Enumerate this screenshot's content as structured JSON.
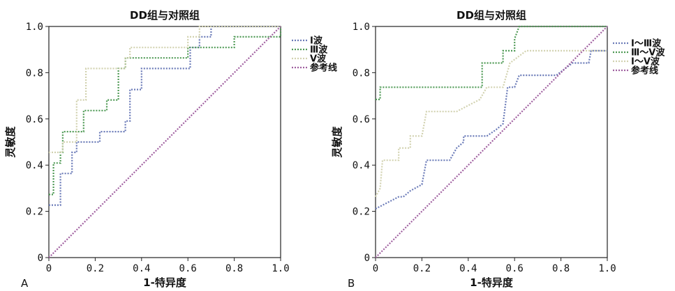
{
  "chart_data": [
    {
      "panel_label": "A",
      "type": "line",
      "title": "DD组与对照组",
      "xlabel": "1-特异度",
      "ylabel": "灵敏度",
      "xlim": [
        0,
        1
      ],
      "ylim": [
        0,
        1
      ],
      "x_ticks": [
        "0",
        "0.2",
        "0.4",
        "0.6",
        "0.8",
        "1.0"
      ],
      "y_ticks": [
        "0",
        "0.2",
        "0.4",
        "0.6",
        "0.8",
        "1.0"
      ],
      "grid": false,
      "legend_position": "right",
      "series": [
        {
          "name": "Ⅰ波",
          "color": "#6b7bb8",
          "points": [
            [
              0,
              0.227
            ],
            [
              0.05,
              0.227
            ],
            [
              0.05,
              0.364
            ],
            [
              0.1,
              0.364
            ],
            [
              0.1,
              0.455
            ],
            [
              0.12,
              0.455
            ],
            [
              0.12,
              0.5
            ],
            [
              0.22,
              0.5
            ],
            [
              0.22,
              0.545
            ],
            [
              0.33,
              0.545
            ],
            [
              0.33,
              0.591
            ],
            [
              0.35,
              0.591
            ],
            [
              0.35,
              0.727
            ],
            [
              0.4,
              0.727
            ],
            [
              0.4,
              0.818
            ],
            [
              0.61,
              0.818
            ],
            [
              0.61,
              0.909
            ],
            [
              0.65,
              0.909
            ],
            [
              0.65,
              0.955
            ],
            [
              0.7,
              0.955
            ],
            [
              0.7,
              1.0
            ],
            [
              1.0,
              1.0
            ]
          ]
        },
        {
          "name": "Ⅲ波",
          "color": "#4f9a55",
          "points": [
            [
              0,
              0.273
            ],
            [
              0.02,
              0.273
            ],
            [
              0.02,
              0.409
            ],
            [
              0.05,
              0.409
            ],
            [
              0.05,
              0.455
            ],
            [
              0.06,
              0.455
            ],
            [
              0.06,
              0.545
            ],
            [
              0.15,
              0.545
            ],
            [
              0.15,
              0.636
            ],
            [
              0.25,
              0.636
            ],
            [
              0.25,
              0.682
            ],
            [
              0.3,
              0.682
            ],
            [
              0.3,
              0.818
            ],
            [
              0.33,
              0.818
            ],
            [
              0.33,
              0.864
            ],
            [
              0.6,
              0.864
            ],
            [
              0.6,
              0.909
            ],
            [
              0.8,
              0.909
            ],
            [
              0.8,
              0.955
            ],
            [
              1.0,
              0.955
            ],
            [
              1.0,
              1.0
            ]
          ]
        },
        {
          "name": "Ⅴ波",
          "color": "#d2d2b0",
          "points": [
            [
              0,
              0.455
            ],
            [
              0.06,
              0.455
            ],
            [
              0.06,
              0.5
            ],
            [
              0.12,
              0.5
            ],
            [
              0.12,
              0.682
            ],
            [
              0.16,
              0.682
            ],
            [
              0.16,
              0.818
            ],
            [
              0.33,
              0.818
            ],
            [
              0.33,
              0.864
            ],
            [
              0.35,
              0.864
            ],
            [
              0.35,
              0.909
            ],
            [
              0.6,
              0.909
            ],
            [
              0.6,
              0.955
            ],
            [
              0.65,
              0.955
            ],
            [
              0.65,
              1.0
            ],
            [
              1.0,
              1.0
            ]
          ]
        },
        {
          "name": "参考线",
          "color": "#a060a0",
          "points": [
            [
              0,
              0
            ],
            [
              1,
              1
            ]
          ]
        }
      ]
    },
    {
      "panel_label": "B",
      "type": "line",
      "title": "DD组与对照组",
      "xlabel": "1-特异度",
      "ylabel": "灵敏度",
      "xlim": [
        0,
        1
      ],
      "ylim": [
        0,
        1
      ],
      "x_ticks": [
        "0",
        "0.2",
        "0.4",
        "0.6",
        "0.8",
        "1.0"
      ],
      "y_ticks": [
        "0",
        "0.2",
        "0.4",
        "0.6",
        "0.8",
        "1.0"
      ],
      "grid": false,
      "legend_position": "right",
      "series": [
        {
          "name": "Ⅰ～Ⅲ波",
          "color": "#6b7bb8",
          "points": [
            [
              0,
              0.211
            ],
            [
              0.05,
              0.237
            ],
            [
              0.1,
              0.263
            ],
            [
              0.12,
              0.263
            ],
            [
              0.15,
              0.289
            ],
            [
              0.2,
              0.316
            ],
            [
              0.22,
              0.421
            ],
            [
              0.32,
              0.421
            ],
            [
              0.35,
              0.474
            ],
            [
              0.38,
              0.5
            ],
            [
              0.38,
              0.526
            ],
            [
              0.48,
              0.526
            ],
            [
              0.52,
              0.553
            ],
            [
              0.55,
              0.579
            ],
            [
              0.57,
              0.737
            ],
            [
              0.6,
              0.737
            ],
            [
              0.62,
              0.789
            ],
            [
              0.78,
              0.789
            ],
            [
              0.85,
              0.842
            ],
            [
              0.92,
              0.842
            ],
            [
              0.93,
              0.895
            ],
            [
              1.0,
              0.895
            ]
          ]
        },
        {
          "name": "Ⅲ～Ⅴ波",
          "color": "#4f9a55",
          "points": [
            [
              0,
              0.684
            ],
            [
              0.02,
              0.684
            ],
            [
              0.02,
              0.737
            ],
            [
              0.46,
              0.737
            ],
            [
              0.46,
              0.842
            ],
            [
              0.55,
              0.842
            ],
            [
              0.55,
              0.895
            ],
            [
              0.6,
              0.895
            ],
            [
              0.6,
              0.947
            ],
            [
              0.62,
              1.0
            ],
            [
              1.0,
              1.0
            ]
          ]
        },
        {
          "name": "Ⅰ～Ⅴ波",
          "color": "#d2d2b0",
          "points": [
            [
              0,
              0.263
            ],
            [
              0.02,
              0.3
            ],
            [
              0.03,
              0.421
            ],
            [
              0.1,
              0.421
            ],
            [
              0.1,
              0.474
            ],
            [
              0.15,
              0.474
            ],
            [
              0.15,
              0.526
            ],
            [
              0.2,
              0.526
            ],
            [
              0.22,
              0.632
            ],
            [
              0.35,
              0.632
            ],
            [
              0.4,
              0.658
            ],
            [
              0.45,
              0.684
            ],
            [
              0.48,
              0.737
            ],
            [
              0.55,
              0.737
            ],
            [
              0.58,
              0.842
            ],
            [
              0.65,
              0.895
            ],
            [
              1.0,
              0.895
            ]
          ]
        },
        {
          "name": "参考线",
          "color": "#a060a0",
          "points": [
            [
              0,
              0
            ],
            [
              1,
              1
            ]
          ]
        }
      ]
    }
  ]
}
